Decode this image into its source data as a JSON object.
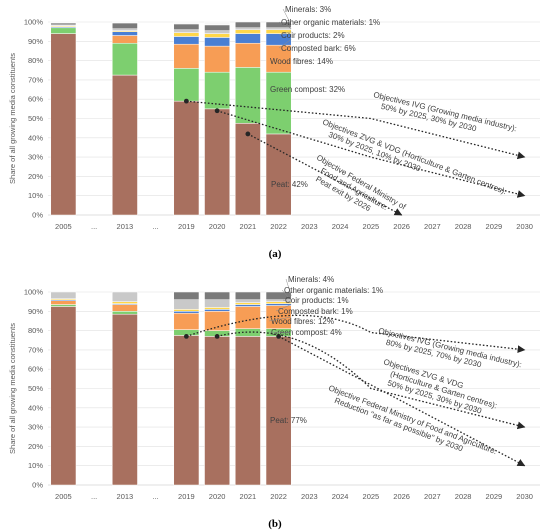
{
  "colors": {
    "Peat": "#a8705f",
    "Green compost": "#7dcf6f",
    "Wood fibres": "#f79d55",
    "Composted bark": "#4a7fd3",
    "Coir products": "#ffd74a",
    "Other organic materials": "#c9c9c9",
    "Minerals": "#7a7a7a",
    "white": "#f7f7f7",
    "axis": "#bfbfbf",
    "grid": "#e0e0e0"
  },
  "chart_data": [
    {
      "panel": "a",
      "caption": "(a)",
      "type": "bar",
      "stacked": true,
      "ylabel": "Share of all growing media constituents",
      "ylim": [
        0,
        100
      ],
      "yticks": [
        "0%",
        "10%",
        "20%",
        "30%",
        "40%",
        "50%",
        "60%",
        "70%",
        "80%",
        "90%",
        "100%"
      ],
      "categories": [
        "2005",
        "...",
        "2013",
        "...",
        "2019",
        "2020",
        "2021",
        "2022",
        "2023",
        "2024",
        "2025",
        "2026",
        "2027",
        "2028",
        "2029",
        "2030"
      ],
      "series": [
        {
          "name": "Peat",
          "values": [
            94,
            null,
            72.5,
            null,
            59,
            55,
            47.5,
            42,
            null,
            null,
            null,
            null,
            null,
            null,
            null,
            null
          ]
        },
        {
          "name": "Green compost",
          "values": [
            3,
            null,
            16.5,
            null,
            17,
            19,
            29,
            32,
            null,
            null,
            null,
            null,
            null,
            null,
            null,
            null
          ]
        },
        {
          "name": "Wood fibres",
          "values": [
            0,
            null,
            4,
            null,
            12.5,
            13.5,
            12.5,
            14,
            null,
            null,
            null,
            null,
            null,
            null,
            null,
            null
          ]
        },
        {
          "name": "Composted bark",
          "values": [
            0.5,
            null,
            2,
            null,
            4,
            4.5,
            5,
            6,
            null,
            null,
            null,
            null,
            null,
            null,
            null,
            null
          ]
        },
        {
          "name": "Coir products",
          "values": [
            0.5,
            null,
            0.5,
            null,
            2,
            2,
            2,
            2,
            null,
            null,
            null,
            null,
            null,
            null,
            null,
            null
          ]
        },
        {
          "name": "Other organic materials",
          "values": [
            0.5,
            null,
            1,
            null,
            1.5,
            1.5,
            1,
            1,
            null,
            null,
            null,
            null,
            null,
            null,
            null,
            null
          ]
        },
        {
          "name": "Minerals",
          "values": [
            1,
            null,
            3,
            null,
            3,
            3,
            3,
            3,
            null,
            null,
            null,
            null,
            null,
            null,
            null,
            null
          ]
        }
      ],
      "segment_labels": [
        {
          "series": "Minerals",
          "text": "Minerals: 3%"
        },
        {
          "series": "Other organic materials",
          "text": "Other organic materials: 1%"
        },
        {
          "series": "Coir products",
          "text": "Coir products: 2%"
        },
        {
          "series": "Composted bark",
          "text": "Composted bark: 6%"
        },
        {
          "series": "Wood fibres",
          "text": "Wood fibres: 14%"
        },
        {
          "series": "Green compost",
          "text": "Green compost: 32%"
        },
        {
          "series": "Peat",
          "text": "Peat: 42%"
        }
      ],
      "objectives": [
        {
          "lines": [
            "Objectives IVG (Growing media industry):",
            "50% by 2025, 30% by 2030"
          ],
          "from": {
            "x": "2019",
            "y": 59
          },
          "to": {
            "x": "2030",
            "y": 30
          }
        },
        {
          "lines": [
            "Objectives ZVG & VDG (Horticulture & Garten centres):",
            "30% by 2025, 10% by 2030"
          ],
          "from": {
            "x": "2020",
            "y": 54
          },
          "to": {
            "x": "2030",
            "y": 10
          }
        },
        {
          "lines": [
            "Objective Federal Ministry of",
            "Food and Agriculture:",
            "Peat exit by 2026"
          ],
          "from": {
            "x": "2021",
            "y": 42
          },
          "to": {
            "x": "2026",
            "y": 0
          }
        }
      ]
    },
    {
      "panel": "b",
      "caption": "(b)",
      "type": "bar",
      "stacked": true,
      "ylabel": "Share of all growing media constituents",
      "ylim": [
        0,
        100
      ],
      "yticks": [
        "0%",
        "10%",
        "20%",
        "30%",
        "40%",
        "50%",
        "60%",
        "70%",
        "80%",
        "90%",
        "100%"
      ],
      "categories": [
        "2005",
        "...",
        "2013",
        "...",
        "2019",
        "2020",
        "2021",
        "2022",
        "2023",
        "2024",
        "2025",
        "2026",
        "2027",
        "2028",
        "2029",
        "2030"
      ],
      "series": [
        {
          "name": "Peat",
          "values": [
            92.5,
            null,
            88.5,
            null,
            77.5,
            77,
            77,
            77,
            null,
            null,
            null,
            null,
            null,
            null,
            null,
            null
          ]
        },
        {
          "name": "Green compost",
          "values": [
            1,
            null,
            1.5,
            null,
            3,
            3,
            4,
            4,
            null,
            null,
            null,
            null,
            null,
            null,
            null,
            null
          ]
        },
        {
          "name": "Wood fibres",
          "values": [
            2,
            null,
            3.5,
            null,
            8.5,
            10,
            11.5,
            12,
            null,
            null,
            null,
            null,
            null,
            null,
            null,
            null
          ]
        },
        {
          "name": "Composted bark",
          "values": [
            0.5,
            null,
            0.5,
            null,
            1,
            1,
            1,
            1,
            null,
            null,
            null,
            null,
            null,
            null,
            null,
            null
          ]
        },
        {
          "name": "Coir products",
          "values": [
            0.5,
            null,
            1,
            null,
            1,
            1,
            1,
            1,
            null,
            null,
            null,
            null,
            null,
            null,
            null,
            null
          ]
        },
        {
          "name": "Other organic materials",
          "values": [
            3.5,
            null,
            5,
            null,
            5,
            4,
            1.5,
            1,
            null,
            null,
            null,
            null,
            null,
            null,
            null,
            null
          ]
        },
        {
          "name": "Minerals",
          "values": [
            0,
            null,
            0,
            null,
            4,
            4,
            4,
            4,
            null,
            null,
            null,
            null,
            null,
            null,
            null,
            null
          ]
        }
      ],
      "segment_labels": [
        {
          "series": "Minerals",
          "text": "Minerals: 4%"
        },
        {
          "series": "Other organic materials",
          "text": "Other organic materials: 1%"
        },
        {
          "series": "Coir products",
          "text": "Coir products: 1%"
        },
        {
          "series": "Composted bark",
          "text": "Composted bark: 1%"
        },
        {
          "series": "Wood fibres",
          "text": "Wood fibres: 12%"
        },
        {
          "series": "Green compost",
          "text": "Green compost: 4%"
        },
        {
          "series": "Peat",
          "text": "Peat: 77%"
        }
      ],
      "objectives": [
        {
          "lines": [
            "Objectives IVG (Growing media industry):",
            "80% by 2025, 70% by 2030"
          ],
          "from": {
            "x": "2019",
            "y": 77
          },
          "to": {
            "x": "2030",
            "y": 70
          }
        },
        {
          "lines": [
            "Objectives ZVG & VDG",
            "(Horticulture & Garten centres):",
            "50% by 2025, 30% by 2030"
          ],
          "from": {
            "x": "2020",
            "y": 77
          },
          "to": {
            "x": "2030",
            "y": 30
          }
        },
        {
          "lines": [
            "Objective Federal Ministry of Food and Agriculture:",
            "Reduction \"as far as possible\" by 2030"
          ],
          "from": {
            "x": "2022",
            "y": 77
          },
          "to": {
            "x": "2030",
            "y": 10
          }
        }
      ]
    }
  ]
}
